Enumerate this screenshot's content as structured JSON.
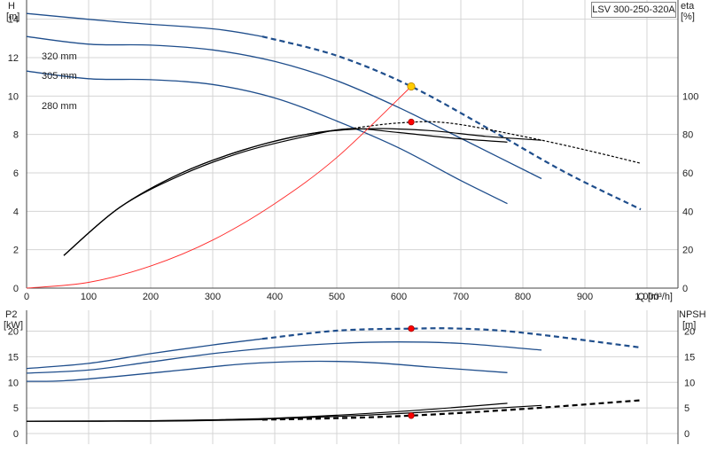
{
  "chart_data": [
    {
      "type": "line",
      "panel": "main",
      "title": "LSV 300-250-320A",
      "xlabel": "Q [m³/h]",
      "ylabel_left": [
        "H",
        "[m]"
      ],
      "ylabel_right": [
        "eta",
        "[%]"
      ],
      "xlim": [
        0,
        1050
      ],
      "ylim_left": [
        0,
        15
      ],
      "ylim_right": [
        0,
        150
      ],
      "x_ticks": [
        "0",
        "100",
        "200",
        "300",
        "400",
        "500",
        "600",
        "700",
        "800",
        "900",
        "1,000"
      ],
      "y_ticks_left": [
        "0",
        "2",
        "4",
        "6",
        "8",
        "10",
        "12",
        "14"
      ],
      "y_ticks_right": [
        "0",
        "20",
        "40",
        "60",
        "80",
        "100"
      ],
      "grid": true,
      "impeller_labels": [
        "320 mm",
        "305 mm",
        "280 mm"
      ],
      "series": [
        {
          "label": "320 mm",
          "role": "head",
          "color": "#1f4e8c",
          "axis": "left",
          "solid": [
            [
              0,
              14.3
            ],
            [
              150,
              13.85
            ],
            [
              300,
              13.5
            ],
            [
              380,
              13.1
            ]
          ],
          "dashed": [
            [
              380,
              13.1
            ],
            [
              500,
              12.1
            ],
            [
              620,
              10.5
            ],
            [
              750,
              8.2
            ],
            [
              870,
              6.0
            ],
            [
              990,
              4.1
            ]
          ]
        },
        {
          "label": "305 mm",
          "role": "head",
          "color": "#1f4e8c",
          "axis": "left",
          "solid": [
            [
              0,
              13.1
            ],
            [
              100,
              12.7
            ],
            [
              200,
              12.65
            ],
            [
              300,
              12.4
            ],
            [
              400,
              11.8
            ],
            [
              500,
              10.8
            ],
            [
              600,
              9.4
            ],
            [
              700,
              7.8
            ],
            [
              830,
              5.7
            ]
          ]
        },
        {
          "label": "280 mm",
          "role": "head",
          "color": "#1f4e8c",
          "axis": "left",
          "solid": [
            [
              0,
              11.3
            ],
            [
              100,
              10.9
            ],
            [
              200,
              10.85
            ],
            [
              300,
              10.6
            ],
            [
              400,
              9.9
            ],
            [
              500,
              8.7
            ],
            [
              600,
              7.3
            ],
            [
              700,
              5.6
            ],
            [
              775,
              4.4
            ]
          ]
        },
        {
          "label": "",
          "role": "efficiency 320 mm",
          "color": "#000000",
          "axis": "right",
          "solid": [
            [
              60,
              17
            ],
            [
              150,
              42
            ],
            [
              250,
              60
            ],
            [
              350,
              72
            ],
            [
              450,
              80
            ],
            [
              520,
              83
            ]
          ],
          "dashed": [
            [
              520,
              83
            ],
            [
              600,
              86
            ],
            [
              680,
              86
            ],
            [
              800,
              79
            ],
            [
              900,
              72
            ],
            [
              990,
              65
            ]
          ]
        },
        {
          "label": "",
          "role": "efficiency 305 mm",
          "color": "#000000",
          "axis": "right",
          "solid": [
            [
              60,
              17
            ],
            [
              150,
              42
            ],
            [
              250,
              60
            ],
            [
              350,
              72
            ],
            [
              450,
              80
            ],
            [
              550,
              83
            ],
            [
              650,
              82
            ],
            [
              740,
              79
            ],
            [
              830,
              77
            ]
          ]
        },
        {
          "label": "",
          "role": "efficiency 280 mm",
          "color": "#000000",
          "axis": "right",
          "solid": [
            [
              60,
              17
            ],
            [
              150,
              42
            ],
            [
              250,
              59
            ],
            [
              350,
              71
            ],
            [
              450,
              79
            ],
            [
              520,
              83
            ],
            [
              600,
              81
            ],
            [
              690,
              78
            ],
            [
              775,
              76
            ]
          ]
        },
        {
          "label": "",
          "role": "system curve",
          "color": "#ff2a2a",
          "axis": "left",
          "solid": [
            [
              0,
              0
            ],
            [
              100,
              0.3
            ],
            [
              200,
              1.15
            ],
            [
              300,
              2.5
            ],
            [
              400,
              4.4
            ],
            [
              500,
              6.8
            ],
            [
              620,
              10.5
            ]
          ]
        }
      ],
      "markers": [
        {
          "role": "duty point",
          "x": 620,
          "y": 10.5,
          "axis": "left",
          "color": "#ffcc00"
        },
        {
          "role": "efficiency at duty point",
          "x": 620,
          "y": 86.5,
          "axis": "right",
          "color": "#ff0000"
        }
      ]
    },
    {
      "type": "line",
      "panel": "lower",
      "ylabel_left": [
        "P2",
        "[kW]"
      ],
      "ylabel_right": [
        "NPSH",
        "[m]"
      ],
      "xlim": [
        0,
        1050
      ],
      "ylim_left": [
        0,
        22
      ],
      "ylim_right": [
        0,
        22
      ],
      "y_ticks_left": [
        "0",
        "5",
        "10",
        "15",
        "20"
      ],
      "y_ticks_right": [
        "0",
        "5",
        "10",
        "15",
        "20"
      ],
      "grid": true,
      "series": [
        {
          "label": "",
          "role": "P2 320 mm",
          "color": "#1f4e8c",
          "axis": "left",
          "solid": [
            [
              0,
              12.7
            ],
            [
              100,
              13.7
            ],
            [
              200,
              15.6
            ],
            [
              300,
              17.3
            ],
            [
              380,
              18.5
            ]
          ],
          "dashed": [
            [
              380,
              18.5
            ],
            [
              500,
              20.1
            ],
            [
              620,
              20.5
            ],
            [
              700,
              20.5
            ],
            [
              800,
              19.7
            ],
            [
              990,
              16.8
            ]
          ]
        },
        {
          "label": "",
          "role": "P2 305 mm",
          "color": "#1f4e8c",
          "axis": "left",
          "solid": [
            [
              0,
              11.8
            ],
            [
              100,
              12.4
            ],
            [
              200,
              14.0
            ],
            [
              300,
              15.6
            ],
            [
              400,
              16.8
            ],
            [
              500,
              17.6
            ],
            [
              600,
              17.9
            ],
            [
              700,
              17.6
            ],
            [
              830,
              16.3
            ]
          ]
        },
        {
          "label": "",
          "role": "P2 280 mm",
          "color": "#1f4e8c",
          "axis": "left",
          "solid": [
            [
              0,
              10.2
            ],
            [
              60,
              10.3
            ],
            [
              150,
              11.2
            ],
            [
              250,
              12.4
            ],
            [
              350,
              13.6
            ],
            [
              450,
              14.1
            ],
            [
              550,
              13.9
            ],
            [
              650,
              13.0
            ],
            [
              775,
              11.9
            ]
          ]
        },
        {
          "label": "",
          "role": "NPSH 320 mm",
          "color": "#000000",
          "axis": "right",
          "solid": [
            [
              0,
              2.4
            ],
            [
              200,
              2.4
            ],
            [
              380,
              2.7
            ]
          ],
          "dashed": [
            [
              380,
              2.7
            ],
            [
              500,
              3.0
            ],
            [
              620,
              3.5
            ],
            [
              800,
              4.8
            ],
            [
              990,
              6.5
            ]
          ]
        },
        {
          "label": "",
          "role": "NPSH 305 mm",
          "color": "#000000",
          "axis": "right",
          "solid": [
            [
              0,
              2.4
            ],
            [
              200,
              2.5
            ],
            [
              400,
              2.9
            ],
            [
              600,
              3.9
            ],
            [
              830,
              5.5
            ]
          ]
        },
        {
          "label": "",
          "role": "NPSH 280 mm",
          "color": "#000000",
          "axis": "right",
          "solid": [
            [
              0,
              2.4
            ],
            [
              200,
              2.5
            ],
            [
              400,
              3.0
            ],
            [
              600,
              4.3
            ],
            [
              775,
              5.9
            ]
          ]
        }
      ],
      "markers": [
        {
          "role": "P2 at duty point",
          "x": 620,
          "y": 20.5,
          "axis": "left",
          "color": "#ff0000"
        },
        {
          "role": "NPSH at duty point",
          "x": 620,
          "y": 3.5,
          "axis": "right",
          "color": "#ff0000"
        }
      ]
    }
  ]
}
